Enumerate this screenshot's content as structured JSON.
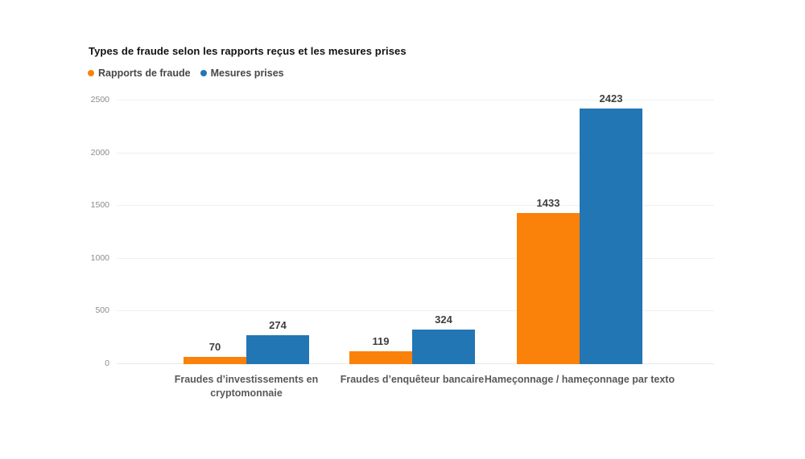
{
  "title": "Types de fraude selon les rapports reçus et les mesures prises",
  "legend": [
    {
      "label": "Rapports de fraude",
      "color": "#FA820A"
    },
    {
      "label": "Mesures prises",
      "color": "#2376B4"
    }
  ],
  "colors": {
    "background": "#ffffff",
    "title_text": "#121212",
    "data_label_text": "#3e3e3e",
    "category_text": "#595959",
    "axis_tick_text": "#8c8c8c",
    "gridline": "#f0f0f0"
  },
  "chart_data": {
    "type": "bar",
    "title": "Types de fraude selon les rapports reçus et les mesures prises",
    "categories": [
      "Fraudes d’investissements en cryptomonnaie",
      "Fraudes d’enquêteur bancaire",
      "Hameçonnage / hameçonnage par texto"
    ],
    "series": [
      {
        "name": "Rapports de fraude",
        "color": "#FA820A",
        "values": [
          70,
          119,
          1433
        ]
      },
      {
        "name": "Mesures prises",
        "color": "#2376B4",
        "values": [
          274,
          324,
          2423
        ]
      }
    ],
    "xlabel": "",
    "ylabel": "",
    "ylim": [
      0,
      2500
    ],
    "yticks": [
      0,
      500,
      1000,
      1500,
      2000,
      2500
    ],
    "grid": true,
    "legend_position": "top-left",
    "data_labels": true
  }
}
